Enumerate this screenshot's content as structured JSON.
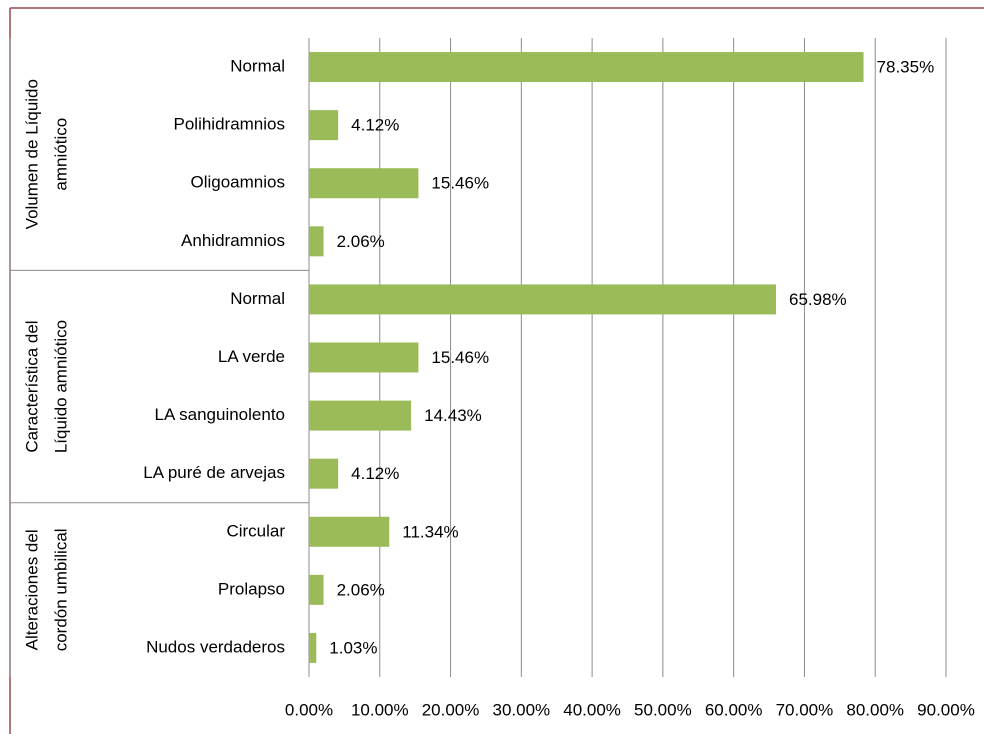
{
  "chart_data": {
    "type": "bar",
    "groups": [
      {
        "name_lines": [
          "Volumen de Líquido",
          "amniótico"
        ],
        "categories": [
          "Normal",
          "Polihidramnios",
          "Oligoamnios",
          "Anhidramnios"
        ],
        "values": [
          78.35,
          4.12,
          15.46,
          2.06
        ],
        "value_labels": [
          "78.35%",
          "4.12%",
          "15.46%",
          "2.06%"
        ]
      },
      {
        "name_lines": [
          "Característica del",
          "Líquido amniótico"
        ],
        "categories": [
          "Normal",
          "LA verde",
          "LA sanguinolento",
          "LA puré de arvejas"
        ],
        "values": [
          65.98,
          15.46,
          14.43,
          4.12
        ],
        "value_labels": [
          "65.98%",
          "15.46%",
          "14.43%",
          "4.12%"
        ]
      },
      {
        "name_lines": [
          "Alteraciones del",
          "cordón umbilical"
        ],
        "categories": [
          "Circular",
          "Prolapso",
          "Nudos verdaderos"
        ],
        "values": [
          11.34,
          2.06,
          1.03
        ],
        "value_labels": [
          "11.34%",
          "2.06%",
          "1.03%"
        ]
      }
    ],
    "color": "#9bbb59",
    "xlim": [
      0,
      90
    ],
    "xticks": [
      {
        "value": 0,
        "label": "0.00%"
      },
      {
        "value": 10,
        "label": "10.00%"
      },
      {
        "value": 20,
        "label": "20.00%"
      },
      {
        "value": 30,
        "label": "30.00%"
      },
      {
        "value": 40,
        "label": "40.00%"
      },
      {
        "value": 50,
        "label": "50.00%"
      },
      {
        "value": 60,
        "label": "60.00%"
      },
      {
        "value": 70,
        "label": "70.00%"
      },
      {
        "value": 80,
        "label": "80.00%"
      },
      {
        "value": 90,
        "label": "90.00%"
      }
    ],
    "grid": true
  }
}
